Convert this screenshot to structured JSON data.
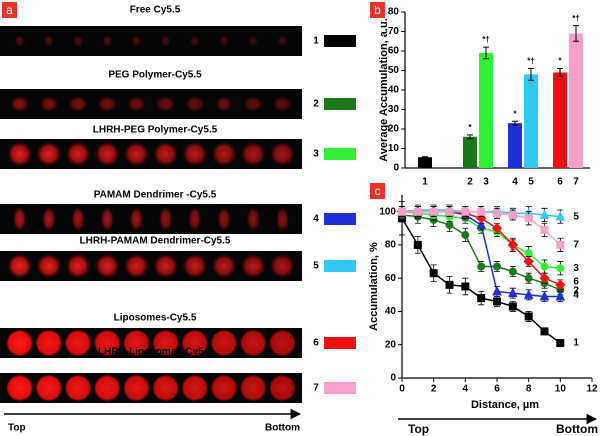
{
  "panel_a": {
    "label": "a",
    "rows": [
      {
        "title": "Free Cy5.5",
        "number": "1",
        "color": "#000000"
      },
      {
        "title": "PEG Polymer-Cy5.5",
        "number": "2",
        "color": "#1a7a1a"
      },
      {
        "title": "LHRH-PEG Polymer-Cy5.5",
        "number": "3",
        "color": "#33ee33"
      },
      {
        "title": "PAMAM Dendrimer -Cy5.5",
        "number": "4",
        "color": "#1f2fd6"
      },
      {
        "title": "LHRH-PAMAM Dendrimer-Cy5.5",
        "number": "5",
        "color": "#33c8f0"
      },
      {
        "title": "Liposomes-Cy5.5",
        "number": "6",
        "color": "#ee1111"
      },
      {
        "title": "LHRH-Liposomes-Cy5.5",
        "number": "7",
        "color": "#f7a1c8"
      }
    ],
    "arrow_start": "Top",
    "arrow_end": "Bottom"
  },
  "chart_data": [
    {
      "type": "bar",
      "panel": "b",
      "ylabel": "Average Accumulation, a.u.",
      "categories": [
        "1",
        "2",
        "3",
        "4",
        "5",
        "6",
        "7"
      ],
      "values": [
        5.5,
        16,
        59,
        23,
        48,
        49,
        69
      ],
      "errors": [
        0.3,
        1,
        3,
        1,
        3,
        2,
        4
      ],
      "annotations": [
        null,
        "*",
        "*†",
        "*",
        "*†",
        "*",
        "*†"
      ],
      "colors": [
        "#000000",
        "#1a7a1a",
        "#33ee33",
        "#1f2fd6",
        "#33c8f0",
        "#ee1111",
        "#f7a1c8"
      ],
      "ylim": [
        0,
        80
      ],
      "yticks": [
        0,
        10,
        20,
        30,
        40,
        50,
        60,
        70,
        80
      ]
    },
    {
      "type": "line",
      "panel": "c",
      "xlabel": "Distance, µm",
      "ylabel": "Accumulation, %",
      "x": [
        0,
        1,
        2,
        3,
        4,
        5,
        6,
        7,
        8,
        9,
        10
      ],
      "series": [
        {
          "name": "1",
          "color": "#000000",
          "marker": "square",
          "values": [
            96,
            80,
            63,
            56,
            55,
            48,
            46,
            43,
            37,
            28,
            21
          ],
          "errors": [
            10,
            5,
            5,
            5,
            5,
            4,
            3,
            3,
            3,
            2,
            2
          ]
        },
        {
          "name": "2",
          "color": "#1a7a1a",
          "marker": "circle",
          "values": [
            98,
            97,
            95,
            92,
            86,
            67,
            67,
            64,
            60,
            57,
            53
          ],
          "errors": [
            4,
            4,
            4,
            4,
            4,
            3,
            3,
            3,
            3,
            3,
            3
          ]
        },
        {
          "name": "3",
          "color": "#33ee33",
          "marker": "circle",
          "values": [
            100,
            99,
            98,
            97,
            96,
            90,
            88,
            80,
            75,
            67,
            66
          ],
          "errors": [
            3,
            3,
            3,
            3,
            3,
            3,
            3,
            4,
            4,
            4,
            4
          ]
        },
        {
          "name": "4",
          "color": "#1f2fd6",
          "marker": "triangle",
          "values": [
            100,
            100,
            100,
            100,
            98,
            92,
            52,
            51,
            50,
            49,
            49
          ],
          "errors": [
            3,
            3,
            3,
            3,
            3,
            3,
            3,
            3,
            3,
            3,
            3
          ]
        },
        {
          "name": "5",
          "color": "#33c8f0",
          "marker": "triangle",
          "values": [
            100,
            101,
            101,
            101,
            100,
            100,
            100,
            99,
            99,
            98,
            97
          ],
          "errors": [
            3,
            3,
            3,
            3,
            3,
            3,
            3,
            3,
            4,
            4,
            4
          ]
        },
        {
          "name": "6",
          "color": "#ee1111",
          "marker": "diamond",
          "values": [
            100,
            100,
            100,
            100,
            99,
            96,
            90,
            80,
            70,
            60,
            56
          ],
          "errors": [
            3,
            3,
            3,
            3,
            3,
            3,
            3,
            3,
            3,
            3,
            3
          ]
        },
        {
          "name": "7",
          "color": "#f7a1c8",
          "marker": "square",
          "values": [
            100,
            100,
            100,
            100,
            100,
            100,
            99,
            98,
            96,
            89,
            80
          ],
          "errors": [
            3,
            3,
            3,
            3,
            3,
            3,
            3,
            3,
            4,
            4,
            4
          ]
        }
      ],
      "xlim": [
        0,
        12
      ],
      "xticks": [
        0,
        2,
        4,
        6,
        8,
        10,
        12
      ],
      "ylim": [
        0,
        110
      ],
      "yticks": [
        0,
        20,
        40,
        60,
        80,
        100
      ],
      "arrow_start": "Top",
      "arrow_end": "Bottom"
    }
  ]
}
